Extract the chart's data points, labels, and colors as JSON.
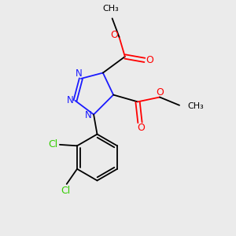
{
  "background_color": "#ebebeb",
  "bond_color": "#000000",
  "triazole_color": "#1a1aff",
  "oxygen_color": "#ff0000",
  "chlorine_color": "#33cc00",
  "figsize": [
    3.0,
    3.0
  ],
  "dpi": 100,
  "xlim": [
    0,
    10
  ],
  "ylim": [
    0,
    10
  ]
}
